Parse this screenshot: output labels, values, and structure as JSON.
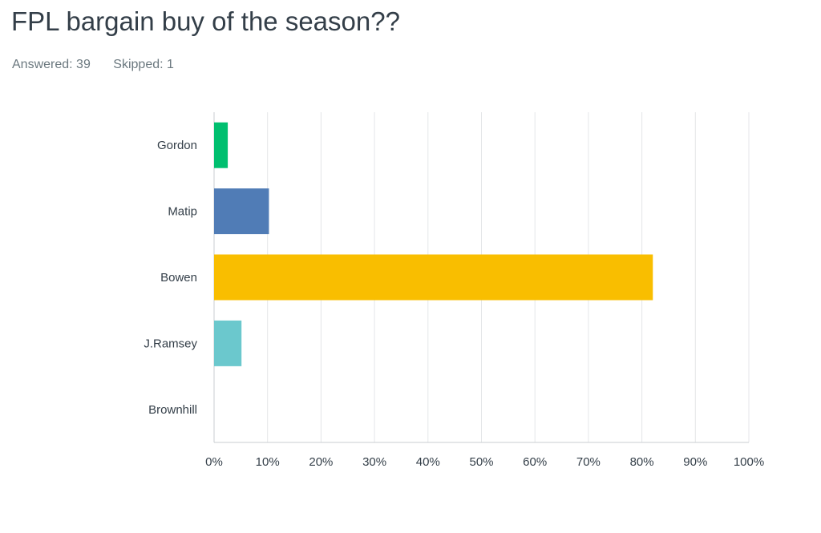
{
  "question": {
    "title": "FPL bargain buy of the season??",
    "answered_label": "Answered:",
    "answered_count": "39",
    "skipped_label": "Skipped:",
    "skipped_count": "1"
  },
  "chart_data": {
    "type": "bar",
    "orientation": "horizontal",
    "categories": [
      "Gordon",
      "Matip",
      "Bowen",
      "J.Ramsey",
      "Brownhill"
    ],
    "values": [
      2.56,
      10.26,
      82.05,
      5.13,
      0
    ],
    "colors": [
      "#00bf6f",
      "#507cb6",
      "#f9be00",
      "#6bc8cd",
      "#ff8b4f"
    ],
    "xticks": [
      "0%",
      "10%",
      "20%",
      "30%",
      "40%",
      "50%",
      "60%",
      "70%",
      "80%",
      "90%",
      "100%"
    ],
    "xlim": [
      0,
      100
    ],
    "grid": true
  }
}
